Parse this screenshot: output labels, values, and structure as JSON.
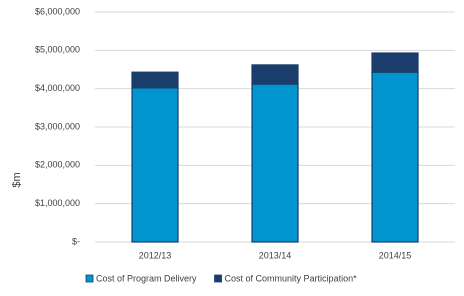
{
  "chart_data": {
    "type": "stacked_bar",
    "y_label": "$m",
    "categories": [
      "2012/13",
      "2013/14",
      "2014/15"
    ],
    "series": [
      {
        "name": "Cost of Program Delivery",
        "color": "#0095cf",
        "values": [
          4020000,
          4120000,
          4430000
        ]
      },
      {
        "name": "Cost of Community Participation*",
        "color": "#1b3d6b",
        "values": [
          410000,
          500000,
          500000
        ]
      }
    ],
    "ylim": [
      0,
      6000000
    ],
    "yticks": [
      {
        "value": 0,
        "label": "$-"
      },
      {
        "value": 1000000,
        "label": "$1,000,000"
      },
      {
        "value": 2000000,
        "label": "$2,000,000"
      },
      {
        "value": 3000000,
        "label": "$3,000,000"
      },
      {
        "value": 4000000,
        "label": "$4,000,000"
      },
      {
        "value": 5000000,
        "label": "$5,000,000"
      },
      {
        "value": 6000000,
        "label": "$6,000,000"
      }
    ],
    "grid": true
  }
}
